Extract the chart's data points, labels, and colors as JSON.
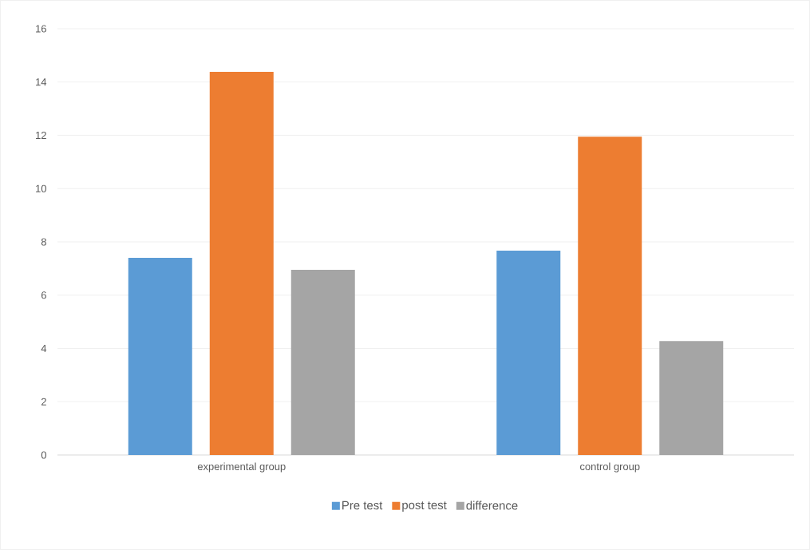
{
  "chart_data": {
    "type": "bar",
    "categories": [
      "experimental group",
      "control group"
    ],
    "series": [
      {
        "name": "Pre test",
        "color": "#5b9bd5",
        "values": [
          7.4,
          7.67
        ]
      },
      {
        "name": "post test",
        "color": "#ed7d31",
        "values": [
          14.38,
          11.95
        ]
      },
      {
        "name": "difference",
        "color": "#a5a5a5",
        "values": [
          6.95,
          4.28
        ]
      }
    ],
    "ylim": [
      0,
      16
    ],
    "yticks": [
      0,
      2,
      4,
      6,
      8,
      10,
      12,
      14,
      16
    ],
    "grid": "y",
    "legend": "bottom"
  }
}
